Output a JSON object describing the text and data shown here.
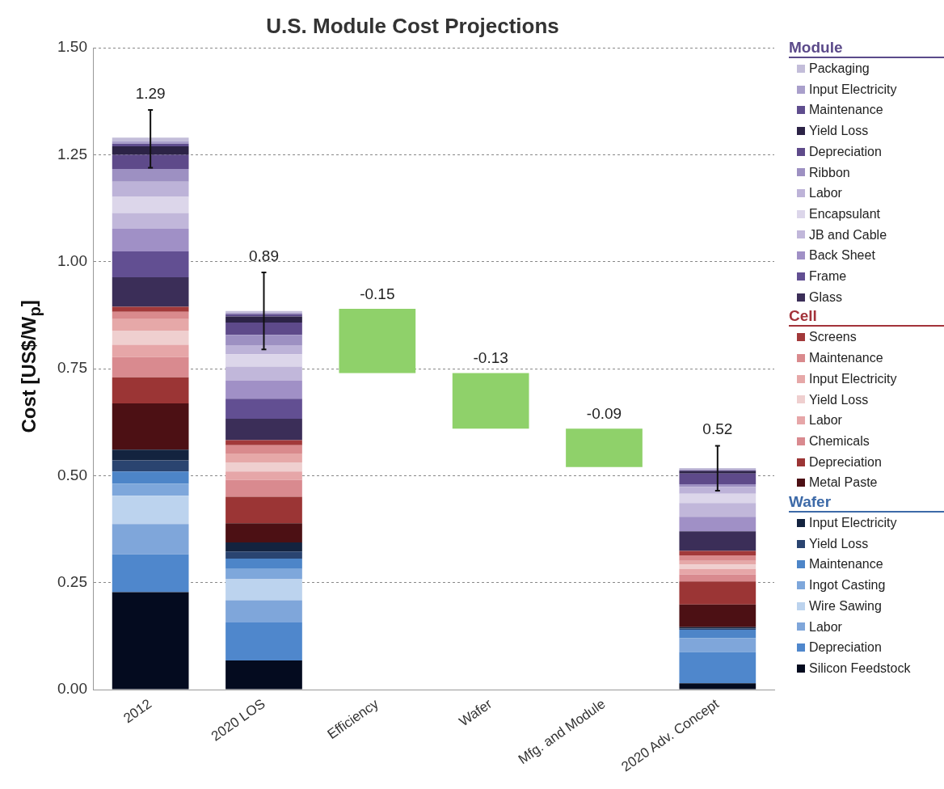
{
  "chart_data": {
    "type": "bar",
    "stacked": true,
    "title": "U.S. Module Cost Projections",
    "ylabel": "Cost [US$/W$_{p}$]",
    "categories": [
      "2012",
      "2020 LOS",
      "Efficiency",
      "Wafer",
      "Mfg. and Module",
      "2020 Adv. Concept"
    ],
    "ylim": [
      0,
      1.5
    ],
    "yticks": [
      {
        "value": 0,
        "label": "0.00"
      },
      {
        "value": 0.25,
        "label": "0.25"
      },
      {
        "value": 0.5,
        "label": "0.50"
      },
      {
        "value": 0.75,
        "label": "0.75"
      },
      {
        "value": 1,
        "label": "1.00"
      },
      {
        "value": 1.25,
        "label": "1.25"
      },
      {
        "value": 1.5,
        "label": "1.50"
      }
    ],
    "grid": "y",
    "legend": "right",
    "annotations": [
      "Module",
      "Cell",
      "Wafer"
    ],
    "totals": [
      "1.29",
      "0.89",
      null,
      null,
      null,
      "0.52"
    ],
    "series": [
      {
        "name": "Silicon Feedstock",
        "color": "#040b1f",
        "values": [
          0.228,
          0.068,
          null,
          null,
          null,
          0.015
        ]
      },
      {
        "name": "Depreciation",
        "color": "#4f87cc",
        "values": [
          0.088,
          0.089,
          null,
          null,
          null,
          0.073
        ]
      },
      {
        "name": "Labor",
        "color": "#7fa6da",
        "values": [
          0.071,
          0.052,
          null,
          null,
          null,
          0.032
        ]
      },
      {
        "name": "Wire Sawing",
        "color": "#bcd3ee",
        "values": [
          0.066,
          0.049,
          null,
          null,
          null,
          0
        ]
      },
      {
        "name": "Ingot Casting",
        "color": "#7ea7db",
        "values": [
          0.028,
          0.024,
          null,
          null,
          null,
          0
        ]
      },
      {
        "name": "Maintenance",
        "color": "#4d85c8",
        "values": [
          0.029,
          0.024,
          null,
          null,
          null,
          0.02
        ]
      },
      {
        "name": "Yield Loss",
        "color": "#2a4470",
        "values": [
          0.026,
          0.017,
          null,
          null,
          null,
          0.003
        ]
      },
      {
        "name": "Input Electricity",
        "color": "#13233f",
        "values": [
          0.025,
          0.021,
          null,
          null,
          null,
          0.003
        ]
      },
      {
        "name": "Metal Paste",
        "color": "#4c1014",
        "values": [
          0.108,
          0.045,
          null,
          null,
          null,
          0.053
        ]
      },
      {
        "name": "Depreciation",
        "color": "#9b3535",
        "values": [
          0.061,
          0.062,
          null,
          null,
          null,
          0.054
        ]
      },
      {
        "name": "Chemicals",
        "color": "#d98a8f",
        "values": [
          0.047,
          0.039,
          null,
          null,
          null,
          0.016
        ]
      },
      {
        "name": "Labor",
        "color": "#e6a6a8",
        "values": [
          0.029,
          0.02,
          null,
          null,
          null,
          0.013
        ]
      },
      {
        "name": "Yield Loss",
        "color": "#efcfcf",
        "values": [
          0.033,
          0.021,
          null,
          null,
          null,
          0.01
        ]
      },
      {
        "name": "Input Electricity",
        "color": "#e6a8a8",
        "values": [
          0.027,
          0.021,
          null,
          null,
          null,
          0.009
        ]
      },
      {
        "name": "Maintenance",
        "color": "#d98a8d",
        "values": [
          0.017,
          0.019,
          null,
          null,
          null,
          0.013
        ]
      },
      {
        "name": "Screens",
        "color": "#a2393a",
        "values": [
          0.012,
          0.012,
          null,
          null,
          null,
          0.01
        ]
      },
      {
        "name": "Glass",
        "color": "#3b2e58",
        "values": [
          0.069,
          0.05,
          null,
          null,
          null,
          0.046
        ]
      },
      {
        "name": "Frame",
        "color": "#624f92",
        "values": [
          0.06,
          0.047,
          null,
          null,
          null,
          0
        ]
      },
      {
        "name": "Back Sheet",
        "color": "#a090c6",
        "values": [
          0.053,
          0.043,
          null,
          null,
          null,
          0.034
        ]
      },
      {
        "name": "JB and Cable",
        "color": "#c1b7da",
        "values": [
          0.037,
          0.032,
          null,
          null,
          null,
          0.032
        ]
      },
      {
        "name": "Encapsulant",
        "color": "#dcd6ea",
        "values": [
          0.038,
          0.029,
          null,
          null,
          null,
          0.022
        ]
      },
      {
        "name": "Labor",
        "color": "#bdb3d8",
        "values": [
          0.035,
          0.021,
          null,
          null,
          null,
          0.016
        ]
      },
      {
        "name": "Ribbon",
        "color": "#9d90c2",
        "values": [
          0.03,
          0.024,
          null,
          null,
          null,
          0.006
        ]
      },
      {
        "name": "Depreciation",
        "color": "#5e4a8a",
        "values": [
          0.033,
          0.029,
          null,
          null,
          null,
          0.025
        ]
      },
      {
        "name": "Yield Loss",
        "color": "#2c2346",
        "values": [
          0.02,
          0.014,
          null,
          null,
          null,
          0.006
        ]
      },
      {
        "name": "Maintenance",
        "color": "#5f4d8e",
        "values": [
          0.006,
          0.006,
          null,
          null,
          null,
          0.002
        ]
      },
      {
        "name": "Input Electricity",
        "color": "#a99fcb",
        "values": [
          0.006,
          0.003,
          null,
          null,
          null,
          0.002
        ]
      },
      {
        "name": "Packaging",
        "color": "#c3bdd9",
        "values": [
          0.008,
          0.004,
          null,
          null,
          null,
          0.003
        ],
        "errors": [
          [
            1.22,
            1.355
          ],
          [
            0.795,
            0.975
          ],
          null,
          null,
          null,
          [
            0.465,
            0.57
          ]
        ]
      },
      {
        "color": "#8fd16a",
        "values": [
          null,
          null,
          -0.15,
          -0.13,
          -0.09,
          null
        ],
        "base": [
          null,
          null,
          0.89,
          0.74,
          0.61,
          null
        ],
        "value_labels": [
          null,
          null,
          "-0.15",
          "-0.13",
          "-0.09",
          null
        ]
      }
    ]
  }
}
